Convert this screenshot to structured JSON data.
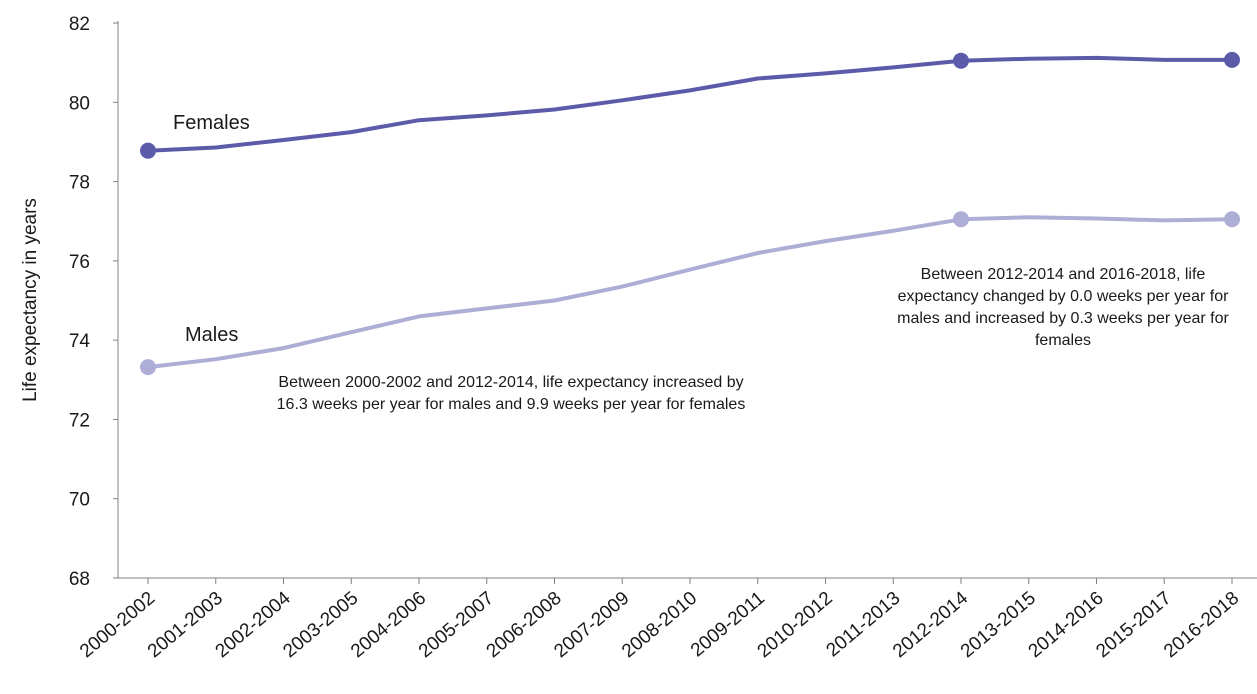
{
  "chart_data": {
    "type": "line",
    "categories": [
      "2000-2002",
      "2001-2003",
      "2002-2004",
      "2003-2005",
      "2004-2006",
      "2005-2007",
      "2006-2008",
      "2007-2009",
      "2008-2010",
      "2009-2011",
      "2010-2012",
      "2011-2013",
      "2012-2014",
      "2013-2015",
      "2014-2016",
      "2015-2017",
      "2016-2018"
    ],
    "series": [
      {
        "name": "Females",
        "color": "#5b5baa",
        "values": [
          78.78,
          78.86,
          79.05,
          79.25,
          79.55,
          79.67,
          79.82,
          80.05,
          80.3,
          80.6,
          80.73,
          80.88,
          81.05,
          81.1,
          81.12,
          81.07,
          81.07
        ],
        "markers": [
          0,
          12,
          16
        ]
      },
      {
        "name": "Males",
        "color": "#adadd6",
        "values": [
          73.32,
          73.52,
          73.8,
          74.2,
          74.6,
          74.8,
          75.0,
          75.35,
          75.78,
          76.2,
          76.5,
          76.76,
          77.05,
          77.1,
          77.07,
          77.02,
          77.05
        ],
        "markers": [
          0,
          12,
          16
        ]
      }
    ],
    "ylabel": "Life expectancy in years",
    "ylim": [
      68,
      82
    ],
    "yticks": [
      68,
      70,
      72,
      74,
      76,
      78,
      80,
      82
    ],
    "annotations": [
      "Between 2000-2002  and 2012-2014,  life expectancy increased by 16.3 weeks per year for males and 9.9 weeks per year for females",
      "Between 2012-2014  and 2016-2018,  life expectancy changed by 0.0 weeks per year for males and increased by 0.3 weeks per year for females"
    ]
  }
}
